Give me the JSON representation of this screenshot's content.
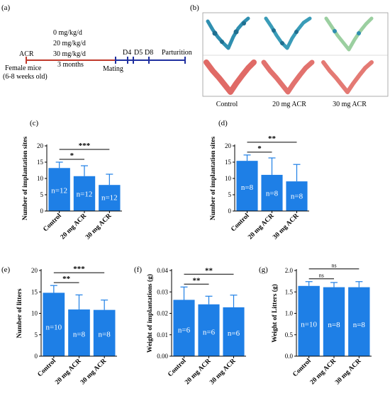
{
  "panel_labels": {
    "a": "(a)",
    "b": "(b)",
    "c": "(c)",
    "d": "(d)",
    "e": "(e)",
    "f": "(f)",
    "g": "(g)"
  },
  "timeline": {
    "doses": [
      "0 mg/kg/d",
      "20 mg/kg/d",
      "30 mg/kg/d"
    ],
    "start_label": "ACR",
    "subject": "Female mice",
    "age": "(6-8 weeks old)",
    "duration": "3 months",
    "mating": "Mating",
    "days": [
      "D4",
      "D5",
      "D8"
    ],
    "end_label": "Parturition",
    "colors": {
      "exposure": "#c0392b",
      "gestation": "#1f2f9f"
    }
  },
  "photo_panel": {
    "labels": [
      "Control",
      "20 mg ACR",
      "30 mg ACR"
    ],
    "colors": {
      "stained_tissue": "#2f8fb0",
      "fresh_tissue": "#e06a66"
    }
  },
  "bar_color": "#1e7fe6",
  "chart_data": [
    {
      "id": "c",
      "type": "bar",
      "ylabel": "Number of implantation sites",
      "categories": [
        "Control",
        "20 mg ACR",
        "30 mg ACR"
      ],
      "values": [
        13.2,
        10.7,
        8.0
      ],
      "errors": [
        1.8,
        3.2,
        3.3
      ],
      "n_labels": [
        "n=12",
        "n=12",
        "n=12"
      ],
      "ylim": [
        0,
        20
      ],
      "yticks": [
        0,
        5,
        10,
        15,
        20
      ],
      "sig": [
        {
          "from": 0,
          "to": 1,
          "label": "*"
        },
        {
          "from": 0,
          "to": 2,
          "label": "***"
        }
      ]
    },
    {
      "id": "d",
      "type": "bar",
      "ylabel": "Number of implantation sites",
      "categories": [
        "Control",
        "20 mg ACR",
        "30 mg ACR"
      ],
      "values": [
        15.4,
        11.1,
        9.1
      ],
      "errors": [
        1.8,
        5.2,
        5.2
      ],
      "n_labels": [
        "n=8",
        "n=8",
        "n=8"
      ],
      "ylim": [
        0,
        20
      ],
      "yticks": [
        0,
        5,
        10,
        15,
        20
      ],
      "sig": [
        {
          "from": 0,
          "to": 1,
          "label": "*"
        },
        {
          "from": 0,
          "to": 2,
          "label": "**"
        }
      ]
    },
    {
      "id": "e",
      "type": "bar",
      "ylabel": "Number of litters",
      "categories": [
        "Control",
        "20 mg ACR",
        "30 mg ACR"
      ],
      "values": [
        14.8,
        10.9,
        10.8
      ],
      "errors": [
        1.7,
        3.4,
        2.3
      ],
      "n_labels": [
        "n=10",
        "n=8",
        "n=8"
      ],
      "ylim": [
        0,
        20
      ],
      "yticks": [
        0,
        5,
        10,
        15,
        20
      ],
      "sig": [
        {
          "from": 0,
          "to": 1,
          "label": "**"
        },
        {
          "from": 0,
          "to": 2,
          "label": "***"
        }
      ]
    },
    {
      "id": "f",
      "type": "bar",
      "ylabel": "Weight of implantations (g)",
      "categories": [
        "Control",
        "20 mg ACR",
        "30 mg ACR"
      ],
      "values": [
        0.0263,
        0.0242,
        0.0228
      ],
      "errors": [
        0.006,
        0.0038,
        0.0057
      ],
      "n_labels": [
        "n=6",
        "n=6",
        "n=6"
      ],
      "ylim": [
        0,
        0.04
      ],
      "yticks": [
        0,
        0.01,
        0.02,
        0.03,
        0.04
      ],
      "ytick_labels": [
        "0.00",
        "0.01",
        "0.02",
        "0.03",
        "0.04"
      ],
      "sig": [
        {
          "from": 0,
          "to": 1,
          "label": "**"
        },
        {
          "from": 0,
          "to": 2,
          "label": "**"
        }
      ]
    },
    {
      "id": "g",
      "type": "bar",
      "ylabel": "Weight of Litters (g)",
      "categories": [
        "Control",
        "20 mg ACR",
        "30 mg ACR"
      ],
      "values": [
        1.64,
        1.61,
        1.61
      ],
      "errors": [
        0.1,
        0.11,
        0.13
      ],
      "n_labels": [
        "n=10",
        "n=8",
        "n=8"
      ],
      "ylim": [
        0,
        2.0
      ],
      "yticks": [
        0,
        0.5,
        1.0,
        1.5,
        2.0
      ],
      "ytick_labels": [
        "0.0",
        "0.5",
        "1.0",
        "1.5",
        "2.0"
      ],
      "sig": [
        {
          "from": 0,
          "to": 1,
          "label": "ns"
        },
        {
          "from": 0,
          "to": 2,
          "label": "ns"
        }
      ]
    }
  ]
}
